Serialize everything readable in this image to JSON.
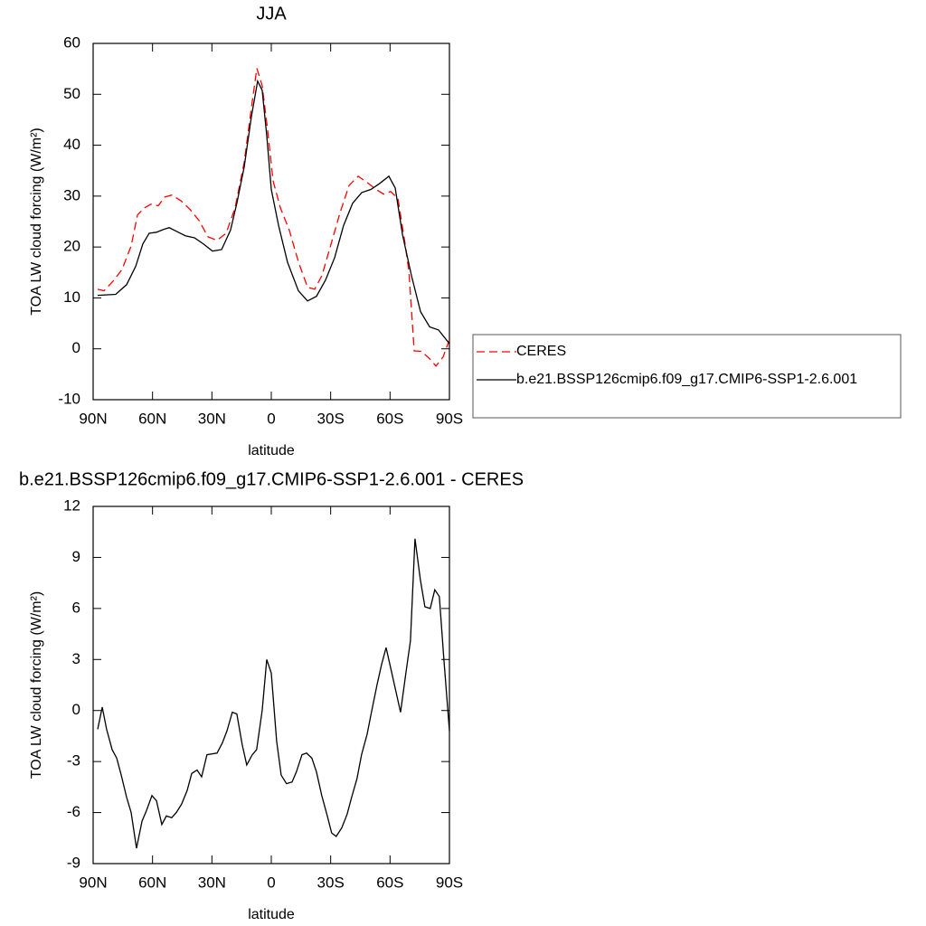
{
  "chart_data": [
    {
      "type": "line",
      "title": "JJA",
      "xlabel": "latitude",
      "ylabel": "TOA LW cloud forcing (W/m²)",
      "xlim": [
        90,
        -90
      ],
      "xticks": [
        {
          "value": 90,
          "label": "90N"
        },
        {
          "value": 60,
          "label": "60N"
        },
        {
          "value": 30,
          "label": "30N"
        },
        0,
        {
          "value": -30,
          "label": "30S"
        },
        {
          "value": -60,
          "label": "60S"
        },
        {
          "value": -90,
          "label": "90S"
        }
      ],
      "ylim": [
        -10,
        60
      ],
      "yticks": [
        -10,
        0,
        10,
        20,
        30,
        40,
        50,
        60
      ],
      "legend": "outside-right",
      "series": [
        {
          "name": "CERES",
          "color": "#ff0000",
          "dash": true,
          "x": [
            87.7,
            84.5,
            79.9,
            75.4,
            70.8,
            67.6,
            64.0,
            60.8,
            57.1,
            53.9,
            50.3,
            45.7,
            41.1,
            36.5,
            32.0,
            27.4,
            22.8,
            18.3,
            13.7,
            10.1,
            7.3,
            4.6,
            1.8,
            -0.9,
            -4.6,
            -9.1,
            -13.7,
            -18.3,
            -21.9,
            -25.6,
            -30.2,
            -34.8,
            -39.3,
            -43.9,
            -48.4,
            -53.0,
            -56.7,
            -60.3,
            -64.0,
            -67.6,
            -69.5,
            -72.2,
            -75.9,
            -80.4,
            -83.2,
            -86.8,
            -90.0
          ],
          "values": [
            11.7,
            11.4,
            13.3,
            15.6,
            20.2,
            26.3,
            27.7,
            28.4,
            28.1,
            29.8,
            30.2,
            29.1,
            27.4,
            25.2,
            22.0,
            21.3,
            22.7,
            27.7,
            36.6,
            47.2,
            55.1,
            51.7,
            42.8,
            33.0,
            27.7,
            23.3,
            17.1,
            12.1,
            11.7,
            14.4,
            20.6,
            26.8,
            32.1,
            33.9,
            32.7,
            31.3,
            30.4,
            30.9,
            29.5,
            20.6,
            15.3,
            -0.4,
            -0.5,
            -2.1,
            -3.4,
            -1.6,
            1.8
          ]
        },
        {
          "name": "b.e21.BSSP126cmip6.f09_g17.CMIP6-SSP1-2.6.001",
          "color": "#000000",
          "dash": false,
          "x": [
            87.7,
            78.6,
            73.1,
            68.5,
            64.9,
            61.7,
            58.0,
            54.8,
            51.6,
            48.0,
            43.4,
            38.8,
            34.3,
            29.7,
            25.1,
            20.6,
            17.4,
            13.7,
            10.1,
            6.9,
            4.6,
            2.3,
            0.0,
            -3.7,
            -8.2,
            -13.7,
            -18.3,
            -22.8,
            -27.4,
            -32.0,
            -36.5,
            -41.1,
            -45.7,
            -50.3,
            -54.8,
            -59.4,
            -62.6,
            -66.3,
            -70.8,
            -75.4,
            -80.0,
            -84.5,
            -90.0
          ],
          "values": [
            10.5,
            10.7,
            12.6,
            16.2,
            20.6,
            22.7,
            22.9,
            23.4,
            23.8,
            23.1,
            22.2,
            21.8,
            20.6,
            19.2,
            19.5,
            23.3,
            28.6,
            35.7,
            45.5,
            52.6,
            50.8,
            41.9,
            31.3,
            24.2,
            17.0,
            11.4,
            9.4,
            10.3,
            13.5,
            17.9,
            24.2,
            28.6,
            30.7,
            31.3,
            32.5,
            33.9,
            31.6,
            22.4,
            14.4,
            7.3,
            4.3,
            3.7,
            1.0
          ]
        }
      ]
    },
    {
      "type": "line",
      "title": "b.e21.BSSP126cmip6.f09_g17.CMIP6-SSP1-2.6.001 - CERES",
      "xlabel": "latitude",
      "ylabel": "TOA LW cloud forcing (W/m²)",
      "xlim": [
        90,
        -90
      ],
      "xticks": [
        {
          "value": 90,
          "label": "90N"
        },
        {
          "value": 60,
          "label": "60N"
        },
        {
          "value": 30,
          "label": "30N"
        },
        0,
        {
          "value": -30,
          "label": "30S"
        },
        {
          "value": -60,
          "label": "60S"
        },
        {
          "value": -90,
          "label": "90S"
        }
      ],
      "ylim": [
        -9,
        12
      ],
      "yticks": [
        -9,
        -6,
        -3,
        0,
        3,
        6,
        9,
        12
      ],
      "color": "#000000",
      "x": [
        87.7,
        85.4,
        83.2,
        80.4,
        78.1,
        75.8,
        73.1,
        70.8,
        68.1,
        65.3,
        63.1,
        60.3,
        58.0,
        55.3,
        53.0,
        50.3,
        48.0,
        45.3,
        42.5,
        40.2,
        37.5,
        35.2,
        32.5,
        27.4,
        24.7,
        22.4,
        19.7,
        17.4,
        14.7,
        12.4,
        9.6,
        7.4,
        4.6,
        2.3,
        0.0,
        -2.7,
        -5.0,
        -7.7,
        -10.5,
        -12.7,
        -15.5,
        -17.8,
        -20.5,
        -22.8,
        -25.5,
        -28.3,
        -30.5,
        -32.8,
        -35.6,
        -38.3,
        -40.6,
        -43.3,
        -45.6,
        -48.4,
        -50.6,
        -53.4,
        -55.7,
        -58.0,
        -60.7,
        -63.0,
        -65.3,
        -68.0,
        -70.3,
        -72.6,
        -75.3,
        -77.6,
        -80.3,
        -82.6,
        -84.9,
        -87.2,
        -90.0
      ],
      "values": [
        -1.1,
        0.2,
        -1.1,
        -2.3,
        -2.8,
        -3.8,
        -5.1,
        -6.0,
        -8.1,
        -6.5,
        -5.9,
        -5.0,
        -5.3,
        -6.7,
        -6.2,
        -6.3,
        -6.0,
        -5.5,
        -4.7,
        -3.7,
        -3.5,
        -3.9,
        -2.6,
        -2.5,
        -1.9,
        -1.2,
        -0.1,
        -0.2,
        -2.0,
        -3.2,
        -2.6,
        -2.3,
        0.0,
        3.0,
        2.2,
        -1.8,
        -3.8,
        -4.3,
        -4.2,
        -3.6,
        -2.6,
        -2.5,
        -2.8,
        -3.6,
        -5.0,
        -6.2,
        -7.2,
        -7.4,
        -6.9,
        -6.1,
        -5.1,
        -4.0,
        -2.6,
        -1.4,
        -0.1,
        1.5,
        2.7,
        3.7,
        2.3,
        1.1,
        -0.1,
        2.2,
        4.1,
        10.1,
        7.7,
        6.1,
        6.0,
        7.1,
        6.7,
        3.0,
        -1.2
      ]
    }
  ]
}
